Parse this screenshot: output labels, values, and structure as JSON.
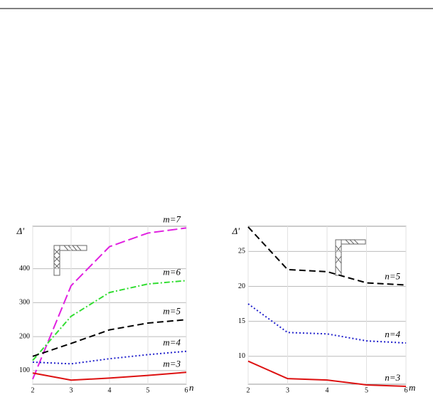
{
  "chart_data": [
    {
      "type": "line",
      "ylabel": "Δ'",
      "xlabel": "n",
      "x": [
        2,
        3,
        4,
        5,
        6
      ],
      "xlim": [
        2,
        6
      ],
      "xticks": [
        2,
        3,
        4,
        5,
        6
      ],
      "ylim": [
        60,
        525
      ],
      "yticks": [
        100,
        200,
        300,
        400
      ],
      "grid": true,
      "series": [
        {
          "name": "m=7",
          "color": "#e020e0",
          "dash": "14,5",
          "values": [
            75,
            350,
            465,
            505,
            520
          ]
        },
        {
          "name": "m=6",
          "color": "#33dd33",
          "dash": "8,3,2,3",
          "values": [
            130,
            260,
            330,
            355,
            365
          ]
        },
        {
          "name": "m=5",
          "color": "#000000",
          "dash": "9,5",
          "values": [
            142,
            180,
            220,
            240,
            250
          ]
        },
        {
          "name": "m=4",
          "color": "#2222cc",
          "dash": "2,3",
          "values": [
            125,
            120,
            135,
            147,
            157
          ]
        },
        {
          "name": "m=3",
          "color": "#dd1111",
          "dash": "none",
          "values": [
            93,
            72,
            78,
            86,
            95
          ]
        }
      ]
    },
    {
      "type": "line",
      "ylabel": "Δ'",
      "xlabel": "m",
      "x": [
        2,
        3,
        4,
        5,
        6
      ],
      "xlim": [
        2,
        6
      ],
      "xticks": [
        2,
        3,
        4,
        5,
        6
      ],
      "ylim": [
        6,
        28.6
      ],
      "yticks": [
        10,
        15,
        20,
        25
      ],
      "grid": true,
      "series": [
        {
          "name": "n=5",
          "color": "#000000",
          "dash": "9,5",
          "values": [
            28.5,
            22.4,
            22.1,
            20.5,
            20.2
          ]
        },
        {
          "name": "n=4",
          "color": "#2222cc",
          "dash": "2,3",
          "values": [
            17.5,
            13.4,
            13.2,
            12.2,
            11.9
          ]
        },
        {
          "name": "n=3",
          "color": "#dd1111",
          "dash": "none",
          "values": [
            9.3,
            6.8,
            6.6,
            5.9,
            5.7
          ]
        }
      ]
    }
  ]
}
